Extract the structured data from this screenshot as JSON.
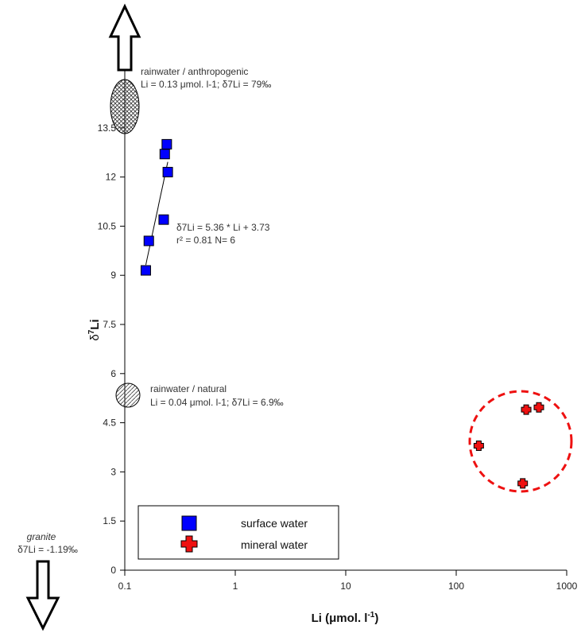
{
  "chart_data": {
    "type": "scatter",
    "x_scale": "log",
    "xlim": [
      0.1,
      1000
    ],
    "ylim": [
      0,
      16
    ],
    "x_ticks": [
      "0.1",
      "1",
      "10",
      "100",
      "1000"
    ],
    "y_ticks": [
      "0",
      "1.5",
      "3",
      "4.5",
      "6",
      "7.5",
      "9",
      "10.5",
      "12",
      "13.5"
    ],
    "xlabel_main": "Li (μmol. l",
    "xlabel_sup": "-1",
    "xlabel_close": ")",
    "ylabel_main": "δ",
    "ylabel_sup": "7",
    "ylabel_rest": "Li",
    "legend_position": "bottom-left",
    "series": [
      {
        "name": "surface water",
        "marker": "square",
        "color": "#0000ff",
        "x": [
          0.155,
          0.165,
          0.225,
          0.23,
          0.24,
          0.245
        ],
        "y": [
          9.15,
          10.05,
          10.7,
          12.7,
          13.0,
          12.15
        ]
      },
      {
        "name": "mineral water",
        "marker": "cross",
        "color": "#ee1111",
        "x": [
          160,
          400,
          430,
          560
        ],
        "y": [
          3.8,
          2.65,
          4.9,
          4.97
        ]
      }
    ],
    "fit": {
      "label_line1": "δ7Li = 5.36 * Li + 3.73",
      "label_line2": "r² = 0.81 N= 6",
      "x_range": [
        0.155,
        0.245
      ]
    },
    "annotations": {
      "rain_anthro_title": "rainwater / anthropogenic",
      "rain_anthro_values": "Li = 0.13 μmol. l-1; δ7Li = 79‰",
      "rain_natural_title": "rainwater / natural",
      "rain_natural_values": "Li = 0.04 μmol. l-1; δ7Li = 6.9‰",
      "granite_title": "granite",
      "granite_values": "δ7Li = -1.19‰"
    }
  }
}
